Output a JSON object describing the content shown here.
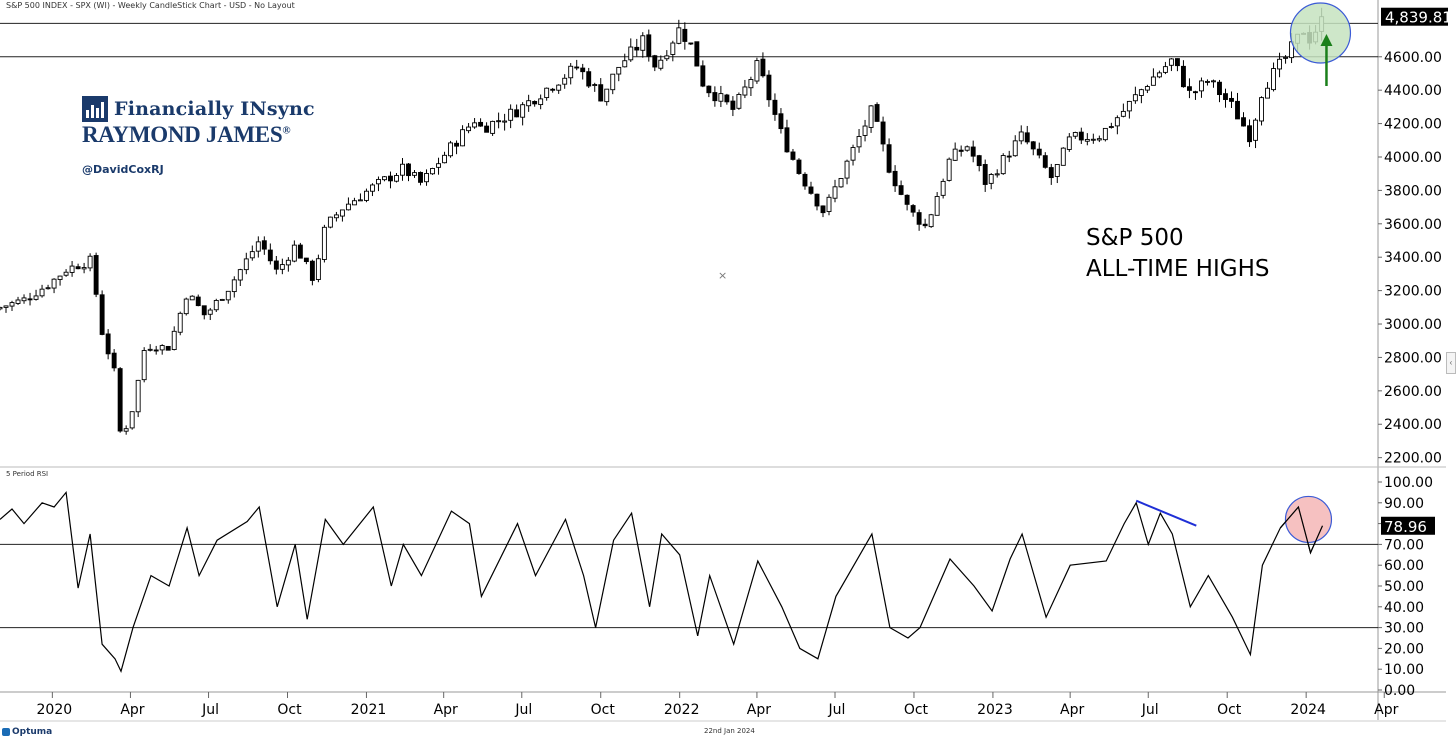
{
  "header": {
    "title": "S&P 500 INDEX - SPX (WI) - Weekly CandleStick Chart - USD - No Layout"
  },
  "branding": {
    "line1": "Financially INsync",
    "line2": "RAYMOND JAMES",
    "registered": "®",
    "handle": "@DavidCoxRJ"
  },
  "annotation": {
    "line1": "S&P 500",
    "line2": "ALL-TIME HIGHS"
  },
  "footer": {
    "date": "22nd Jan 2024",
    "brand": "Optuma"
  },
  "colors": {
    "up_candle": "#ffffff",
    "down_candle": "#000000",
    "circle_price": "#c5e3bf",
    "circle_rsi": "#f4b6b6",
    "circle_border": "#3b5bd6",
    "arrow": "#1a7f1a",
    "trendline": "#1f2fd6"
  },
  "chart_data": [
    {
      "type": "candlestick",
      "title": "S&P 500 INDEX - SPX (WI) - Weekly CandleStick Chart - USD - No Layout",
      "frequency": "weekly",
      "ylim": [
        2150,
        4880
      ],
      "y_ticks": [
        2200,
        2400,
        2600,
        2800,
        3000,
        3200,
        3400,
        3600,
        3800,
        4000,
        4200,
        4400,
        4600
      ],
      "y_tick_labels": [
        "2200.00",
        "2400.00",
        "2600.00",
        "2800.00",
        "3000.00",
        "3200.00",
        "3400.00",
        "3600.00",
        "3800.00",
        "4000.00",
        "4200.00",
        "4400.00",
        "4600.00"
      ],
      "last_value": 4839.81,
      "last_value_label": "4,839.81",
      "x_ticks": [
        {
          "label": "2020",
          "date": "2020-01-01"
        },
        {
          "label": "Apr",
          "date": "2020-04-01"
        },
        {
          "label": "Jul",
          "date": "2020-07-01"
        },
        {
          "label": "Oct",
          "date": "2020-10-01"
        },
        {
          "label": "2021",
          "date": "2021-01-01"
        },
        {
          "label": "Apr",
          "date": "2021-04-01"
        },
        {
          "label": "Jul",
          "date": "2021-07-01"
        },
        {
          "label": "Oct",
          "date": "2021-10-01"
        },
        {
          "label": "2022",
          "date": "2022-01-01"
        },
        {
          "label": "Apr",
          "date": "2022-04-01"
        },
        {
          "label": "Jul",
          "date": "2022-07-01"
        },
        {
          "label": "Oct",
          "date": "2022-10-01"
        },
        {
          "label": "2023",
          "date": "2023-01-01"
        },
        {
          "label": "Apr",
          "date": "2023-04-01"
        },
        {
          "label": "Jul",
          "date": "2023-07-01"
        },
        {
          "label": "Oct",
          "date": "2023-10-01"
        },
        {
          "label": "2024",
          "date": "2024-01-01"
        },
        {
          "label": "Apr",
          "date": "2024-04-01"
        }
      ],
      "horizontal_lines": [
        4800,
        4600
      ],
      "close_path": [
        [
          "2019-11-01",
          3100
        ],
        [
          "2019-12-01",
          3150
        ],
        [
          "2019-12-28",
          3240
        ],
        [
          "2020-01-18",
          3330
        ],
        [
          "2020-02-15",
          3380
        ],
        [
          "2020-02-28",
          2950
        ],
        [
          "2020-03-14",
          2700
        ],
        [
          "2020-03-21",
          2300
        ],
        [
          "2020-04-04",
          2500
        ],
        [
          "2020-04-18",
          2870
        ],
        [
          "2020-05-16",
          2860
        ],
        [
          "2020-06-06",
          3190
        ],
        [
          "2020-06-27",
          3050
        ],
        [
          "2020-07-25",
          3220
        ],
        [
          "2020-08-29",
          3500
        ],
        [
          "2020-09-19",
          3310
        ],
        [
          "2020-10-10",
          3470
        ],
        [
          "2020-10-31",
          3270
        ],
        [
          "2020-11-14",
          3580
        ],
        [
          "2020-12-05",
          3700
        ],
        [
          "2021-01-09",
          3820
        ],
        [
          "2021-02-13",
          3930
        ],
        [
          "2021-03-06",
          3840
        ],
        [
          "2021-04-03",
          4020
        ],
        [
          "2021-05-08",
          4230
        ],
        [
          "2021-05-15",
          4170
        ],
        [
          "2021-06-26",
          4280
        ],
        [
          "2021-08-07",
          4440
        ],
        [
          "2021-09-04",
          4540
        ],
        [
          "2021-10-02",
          4360
        ],
        [
          "2021-10-23",
          4550
        ],
        [
          "2021-11-20",
          4700
        ],
        [
          "2021-12-04",
          4540
        ],
        [
          "2022-01-01",
          4770
        ],
        [
          "2022-01-15",
          4660
        ],
        [
          "2022-01-29",
          4430
        ],
        [
          "2022-02-19",
          4340
        ],
        [
          "2022-03-05",
          4280
        ],
        [
          "2022-04-02",
          4550
        ],
        [
          "2022-04-30",
          4130
        ],
        [
          "2022-05-21",
          3900
        ],
        [
          "2022-06-18",
          3670
        ],
        [
          "2022-07-09",
          3900
        ],
        [
          "2022-08-13",
          4280
        ],
        [
          "2022-09-03",
          3920
        ],
        [
          "2022-09-24",
          3690
        ],
        [
          "2022-10-15",
          3580
        ],
        [
          "2022-11-12",
          3990
        ],
        [
          "2022-12-03",
          4070
        ],
        [
          "2022-12-24",
          3840
        ],
        [
          "2023-01-14",
          3990
        ],
        [
          "2023-02-04",
          4130
        ],
        [
          "2023-03-11",
          3870
        ],
        [
          "2023-04-01",
          4110
        ],
        [
          "2023-05-06",
          4130
        ],
        [
          "2023-06-03",
          4280
        ],
        [
          "2023-07-01",
          4450
        ],
        [
          "2023-07-29",
          4580
        ],
        [
          "2023-08-19",
          4370
        ],
        [
          "2023-09-09",
          4460
        ],
        [
          "2023-10-07",
          4300
        ],
        [
          "2023-10-28",
          4120
        ],
        [
          "2023-11-11",
          4410
        ],
        [
          "2023-12-09",
          4600
        ],
        [
          "2023-12-30",
          4770
        ],
        [
          "2024-01-06",
          4700
        ],
        [
          "2024-01-20",
          4839.81
        ]
      ]
    },
    {
      "type": "line",
      "title": "5 Period RSI",
      "ylim": [
        0,
        100
      ],
      "y_ticks": [
        0,
        10,
        20,
        30,
        40,
        50,
        60,
        70,
        80,
        90,
        100
      ],
      "y_tick_labels": [
        "0.00",
        "10.00",
        "20.00",
        "30.00",
        "40.00",
        "50.00",
        "60.00",
        "70.00",
        "80.00",
        "90.00",
        "100.00"
      ],
      "horizontal_lines": [
        70,
        30
      ],
      "last_value": 78.96,
      "last_value_label": "78.96",
      "series": [
        {
          "values": [
            [
              "2019-11-01",
              82
            ],
            [
              "2019-11-15",
              87
            ],
            [
              "2019-11-29",
              80
            ],
            [
              "2019-12-20",
              90
            ],
            [
              "2020-01-03",
              88
            ],
            [
              "2020-01-17",
              95
            ],
            [
              "2020-01-31",
              49
            ],
            [
              "2020-02-14",
              75
            ],
            [
              "2020-02-28",
              22
            ],
            [
              "2020-03-14",
              15
            ],
            [
              "2020-03-21",
              9
            ],
            [
              "2020-04-04",
              30
            ],
            [
              "2020-04-25",
              55
            ],
            [
              "2020-05-16",
              50
            ],
            [
              "2020-06-06",
              78
            ],
            [
              "2020-06-20",
              55
            ],
            [
              "2020-07-11",
              72
            ],
            [
              "2020-08-15",
              81
            ],
            [
              "2020-08-29",
              88
            ],
            [
              "2020-09-19",
              40
            ],
            [
              "2020-10-10",
              70
            ],
            [
              "2020-10-24",
              34
            ],
            [
              "2020-11-14",
              82
            ],
            [
              "2020-12-05",
              70
            ],
            [
              "2021-01-09",
              88
            ],
            [
              "2021-01-30",
              50
            ],
            [
              "2021-02-13",
              70
            ],
            [
              "2021-03-06",
              55
            ],
            [
              "2021-04-10",
              86
            ],
            [
              "2021-05-01",
              80
            ],
            [
              "2021-05-15",
              45
            ],
            [
              "2021-06-26",
              80
            ],
            [
              "2021-07-17",
              55
            ],
            [
              "2021-08-21",
              82
            ],
            [
              "2021-09-11",
              55
            ],
            [
              "2021-09-25",
              30
            ],
            [
              "2021-10-16",
              72
            ],
            [
              "2021-11-06",
              85
            ],
            [
              "2021-11-27",
              40
            ],
            [
              "2021-12-11",
              75
            ],
            [
              "2022-01-01",
              65
            ],
            [
              "2022-01-22",
              26
            ],
            [
              "2022-02-05",
              55
            ],
            [
              "2022-03-05",
              22
            ],
            [
              "2022-04-02",
              62
            ],
            [
              "2022-04-30",
              40
            ],
            [
              "2022-05-21",
              20
            ],
            [
              "2022-06-11",
              15
            ],
            [
              "2022-07-02",
              45
            ],
            [
              "2022-08-13",
              75
            ],
            [
              "2022-09-03",
              30
            ],
            [
              "2022-09-24",
              25
            ],
            [
              "2022-10-08",
              30
            ],
            [
              "2022-11-12",
              63
            ],
            [
              "2022-12-10",
              50
            ],
            [
              "2022-12-31",
              38
            ],
            [
              "2023-01-21",
              63
            ],
            [
              "2023-02-04",
              75
            ],
            [
              "2023-03-04",
              35
            ],
            [
              "2023-04-01",
              60
            ],
            [
              "2023-05-13",
              62
            ],
            [
              "2023-06-03",
              80
            ],
            [
              "2023-06-17",
              90
            ],
            [
              "2023-07-01",
              70
            ],
            [
              "2023-07-15",
              85
            ],
            [
              "2023-07-29",
              75
            ],
            [
              "2023-08-19",
              40
            ],
            [
              "2023-09-09",
              55
            ],
            [
              "2023-10-07",
              35
            ],
            [
              "2023-10-28",
              17
            ],
            [
              "2023-11-11",
              60
            ],
            [
              "2023-12-02",
              78
            ],
            [
              "2023-12-23",
              88
            ],
            [
              "2024-01-06",
              66
            ],
            [
              "2024-01-20",
              78.96
            ]
          ]
        }
      ]
    }
  ]
}
